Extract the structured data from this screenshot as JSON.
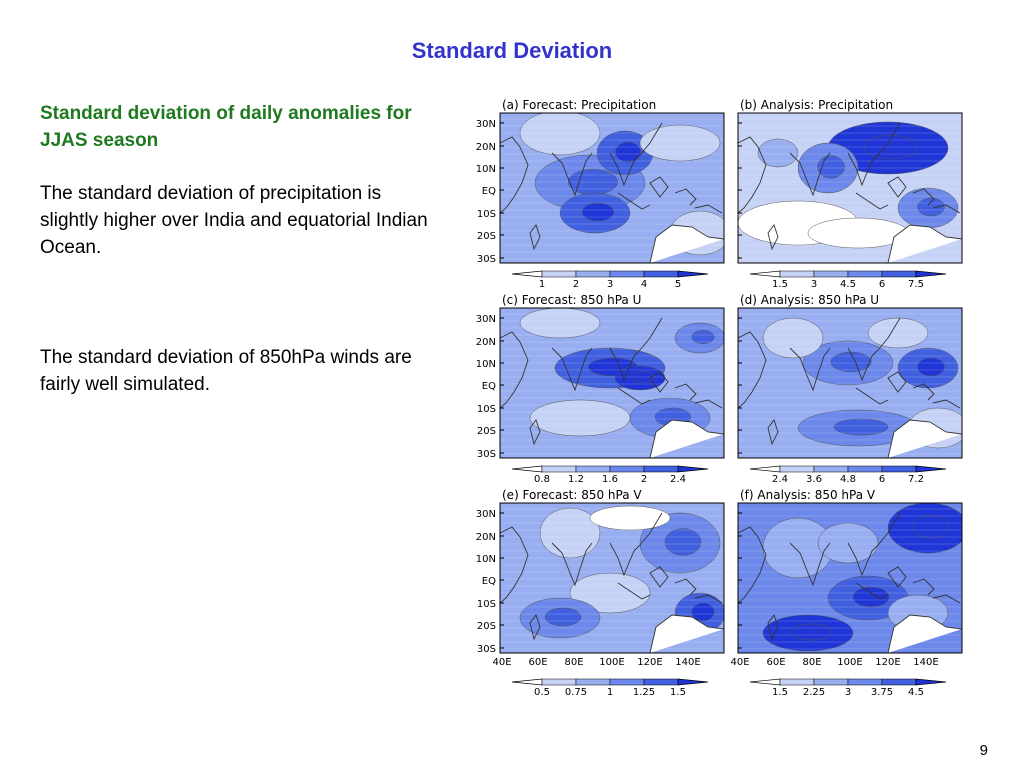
{
  "slide": {
    "title": "Standard Deviation",
    "page_number": "9"
  },
  "left_text": {
    "heading": "Standard deviation of daily anomalies for JJAS season",
    "paragraph1": "The standard deviation of precipitation is slightly higher over India and equatorial Indian Ocean.",
    "paragraph2": "The standard deviation of 850hPa winds are fairly well simulated."
  },
  "figure": {
    "lat_labels": [
      "30N",
      "20N",
      "10N",
      "EQ",
      "10S",
      "20S",
      "30S"
    ],
    "lon_labels": [
      "40E",
      "60E",
      "80E",
      "100E",
      "120E",
      "140E"
    ],
    "panels": [
      {
        "label": "(a) Forecast: Precipitation",
        "colorbar": [
          "1",
          "2",
          "3",
          "4",
          "5"
        ]
      },
      {
        "label": "(b) Analysis: Precipitation",
        "colorbar": [
          "1.5",
          "3",
          "4.5",
          "6",
          "7.5"
        ]
      },
      {
        "label": "(c) Forecast: 850 hPa U",
        "colorbar": [
          "0.8",
          "1.2",
          "1.6",
          "2",
          "2.4"
        ]
      },
      {
        "label": "(d) Analysis: 850 hPa U",
        "colorbar": [
          "2.4",
          "3.6",
          "4.8",
          "6",
          "7.2"
        ]
      },
      {
        "label": "(e) Forecast: 850 hPa V",
        "colorbar": [
          "0.5",
          "0.75",
          "1",
          "1.25",
          "1.5"
        ]
      },
      {
        "label": "(f) Analysis: 850 hPa V",
        "colorbar": [
          "1.5",
          "2.25",
          "3",
          "3.75",
          "4.5"
        ]
      }
    ],
    "colors": {
      "level0": "#ffffff",
      "level1": "#c6d2f5",
      "level2": "#98aef0",
      "level3": "#6b88ea",
      "level4": "#4060e0",
      "level5": "#1f35d6",
      "coast": "#333333"
    }
  }
}
